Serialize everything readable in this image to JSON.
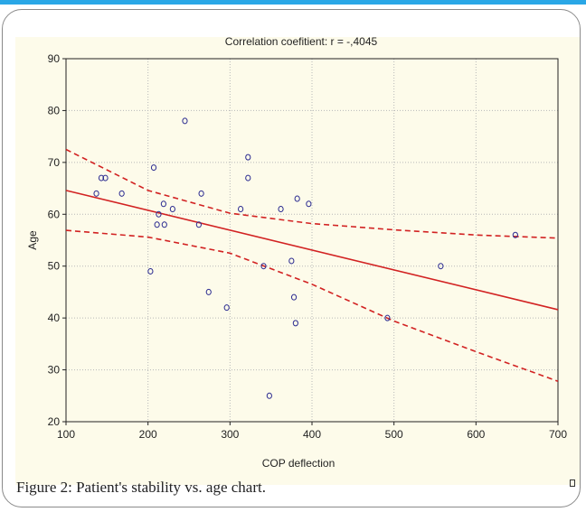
{
  "caption": "Figure 2: Patient's stability vs. age chart.",
  "chart_data": {
    "type": "scatter",
    "title": "Correlation coefitient: r =   -,4045",
    "xlabel": "COP deflection",
    "ylabel": "Age",
    "xlim": [
      100,
      700
    ],
    "ylim": [
      20,
      90
    ],
    "xticks": [
      100,
      200,
      300,
      400,
      500,
      600,
      700
    ],
    "yticks": [
      20,
      30,
      40,
      50,
      60,
      70,
      80,
      90
    ],
    "grid": true,
    "points": [
      {
        "x": 137,
        "y": 64
      },
      {
        "x": 143,
        "y": 67
      },
      {
        "x": 148,
        "y": 67
      },
      {
        "x": 168,
        "y": 64
      },
      {
        "x": 203,
        "y": 49
      },
      {
        "x": 207,
        "y": 69
      },
      {
        "x": 211,
        "y": 58
      },
      {
        "x": 213,
        "y": 60
      },
      {
        "x": 219,
        "y": 62
      },
      {
        "x": 220,
        "y": 58
      },
      {
        "x": 230,
        "y": 61
      },
      {
        "x": 245,
        "y": 78
      },
      {
        "x": 262,
        "y": 58
      },
      {
        "x": 265,
        "y": 64
      },
      {
        "x": 274,
        "y": 45
      },
      {
        "x": 296,
        "y": 42
      },
      {
        "x": 313,
        "y": 61
      },
      {
        "x": 322,
        "y": 71
      },
      {
        "x": 322,
        "y": 67
      },
      {
        "x": 341,
        "y": 50
      },
      {
        "x": 348,
        "y": 25
      },
      {
        "x": 362,
        "y": 61
      },
      {
        "x": 375,
        "y": 51
      },
      {
        "x": 378,
        "y": 44
      },
      {
        "x": 380,
        "y": 39
      },
      {
        "x": 382,
        "y": 63
      },
      {
        "x": 396,
        "y": 62
      },
      {
        "x": 492,
        "y": 40
      },
      {
        "x": 557,
        "y": 50
      },
      {
        "x": 648,
        "y": 56
      }
    ],
    "regression_line": {
      "x": [
        100,
        700
      ],
      "y": [
        64.6,
        41.6
      ]
    },
    "confidence_upper": {
      "x": [
        100,
        200,
        300,
        400,
        500,
        600,
        700
      ],
      "y": [
        72.5,
        64.6,
        60.2,
        58.2,
        57.0,
        56.0,
        55.4
      ]
    },
    "confidence_lower": {
      "x": [
        100,
        200,
        300,
        400,
        500,
        600,
        700
      ],
      "y": [
        56.9,
        55.6,
        52.5,
        46.5,
        39.4,
        33.5,
        27.8
      ]
    },
    "colors": {
      "regression": "#d22222",
      "points": "#2a2a90",
      "background": "#fdfbea",
      "grid": "#b8b8b8"
    }
  }
}
